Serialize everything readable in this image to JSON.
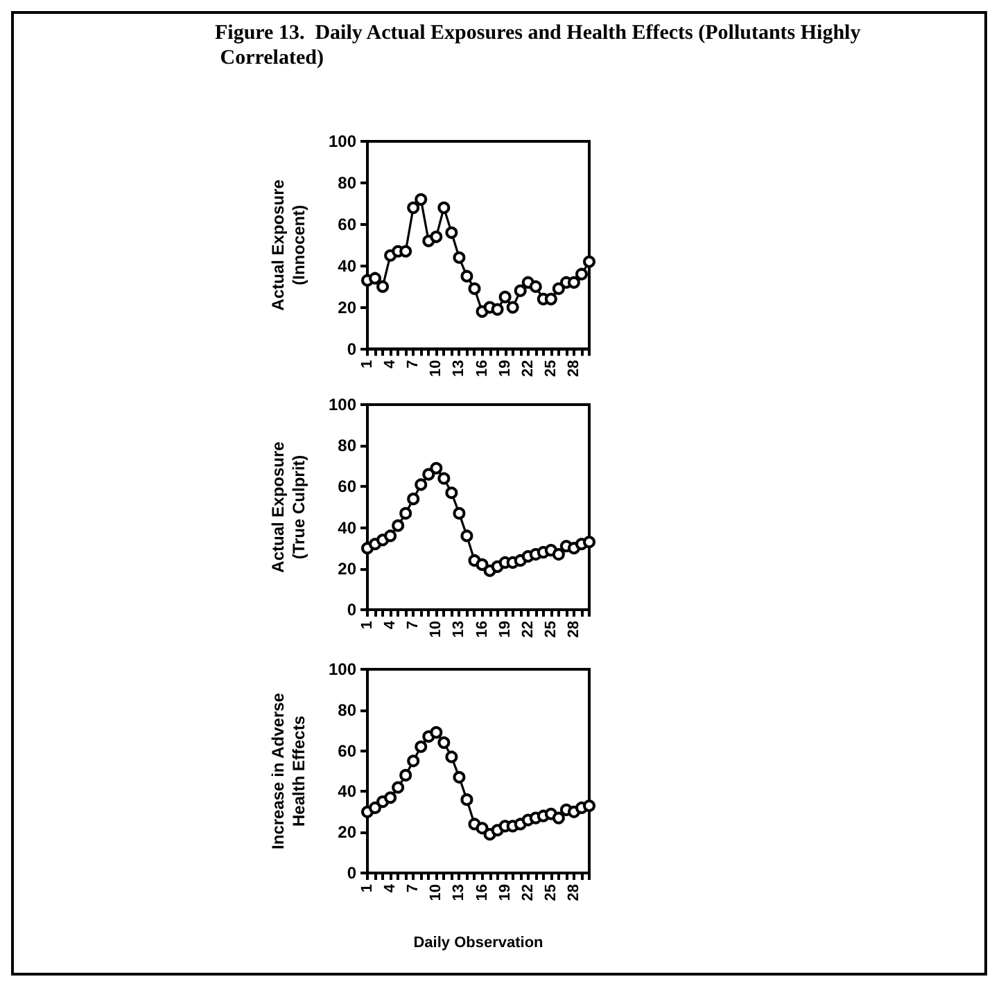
{
  "chart_data": [
    {
      "type": "line",
      "title": "Figure 13.  Daily Actual Exposures and Health Effects (Pollutants Highly Correlated)",
      "ylabel": "Actual Exposure\n(Innocent)",
      "categories": [
        "1",
        null,
        null,
        "4",
        null,
        null,
        "7",
        null,
        null,
        "10",
        null,
        null,
        "13",
        null,
        null,
        "16",
        null,
        null,
        "19",
        null,
        null,
        "22",
        null,
        null,
        "25",
        null,
        null,
        "28",
        null,
        null
      ],
      "series": [
        {
          "color": "#000000",
          "values": [
            33,
            34,
            30,
            45,
            47,
            47,
            68,
            72,
            52,
            54,
            68,
            56,
            44,
            35,
            29,
            18,
            20,
            19,
            25,
            20,
            28,
            32,
            30,
            24,
            24,
            29,
            32,
            32,
            36,
            42
          ]
        }
      ],
      "ylim": [
        0,
        100
      ],
      "yticks": [
        0,
        20,
        40,
        60,
        80,
        100
      ],
      "grid": false,
      "marker": "circle",
      "line_style": "solid"
    },
    {
      "type": "line",
      "ylabel": "Actual Exposure\n(True Culprit)",
      "categories": [
        "1",
        null,
        null,
        "4",
        null,
        null,
        "7",
        null,
        null,
        "10",
        null,
        null,
        "13",
        null,
        null,
        "16",
        null,
        null,
        "19",
        null,
        null,
        "22",
        null,
        null,
        "25",
        null,
        null,
        "28",
        null,
        null
      ],
      "series": [
        {
          "color": "#000000",
          "values": [
            30,
            32,
            34,
            36,
            41,
            47,
            54,
            61,
            66,
            69,
            64,
            57,
            47,
            36,
            24,
            22,
            19,
            21,
            23,
            23,
            24,
            26,
            27,
            28,
            29,
            27,
            31,
            30,
            32,
            33
          ]
        }
      ],
      "ylim": [
        0,
        100
      ],
      "yticks": [
        0,
        20,
        40,
        60,
        80,
        100
      ],
      "grid": false,
      "marker": "circle",
      "line_style": "solid"
    },
    {
      "type": "line",
      "xlabel": "Daily Observation",
      "ylabel": "Increase in Adverse\nHealth Effects",
      "categories": [
        "1",
        null,
        null,
        "4",
        null,
        null,
        "7",
        null,
        null,
        "10",
        null,
        null,
        "13",
        null,
        null,
        "16",
        null,
        null,
        "19",
        null,
        null,
        "22",
        null,
        null,
        "25",
        null,
        null,
        "28",
        null,
        null
      ],
      "series": [
        {
          "color": "#000000",
          "values": [
            30,
            32,
            35,
            37,
            42,
            48,
            55,
            62,
            67,
            69,
            64,
            57,
            47,
            36,
            24,
            22,
            19,
            21,
            23,
            23,
            24,
            26,
            27,
            28,
            29,
            27,
            31,
            30,
            32,
            33
          ]
        }
      ],
      "ylim": [
        0,
        100
      ],
      "yticks": [
        0,
        20,
        40,
        60,
        80,
        100
      ],
      "grid": false,
      "marker": "circle",
      "line_style": "solid"
    }
  ]
}
